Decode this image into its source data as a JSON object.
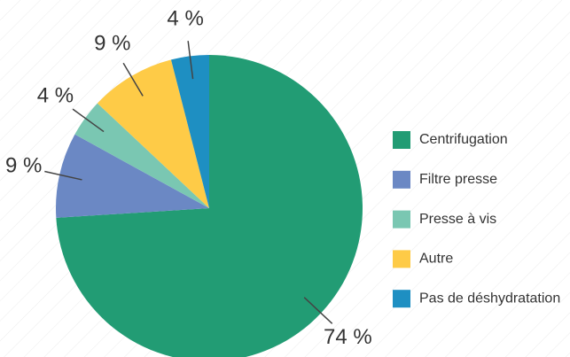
{
  "chart_data": {
    "type": "pie",
    "categories": [
      "Centrifugation",
      "Filtre presse",
      "Presse à vis",
      "Autre",
      "Pas de déshydratation"
    ],
    "values": [
      74,
      9,
      4,
      9,
      4
    ],
    "value_labels": [
      "74 %",
      "9 %",
      "4 %",
      "9 %",
      "4 %"
    ],
    "colors": [
      "#229c74",
      "#6b88c4",
      "#7ac7b2",
      "#fecb47",
      "#1e8fc2"
    ],
    "legend": "right"
  }
}
